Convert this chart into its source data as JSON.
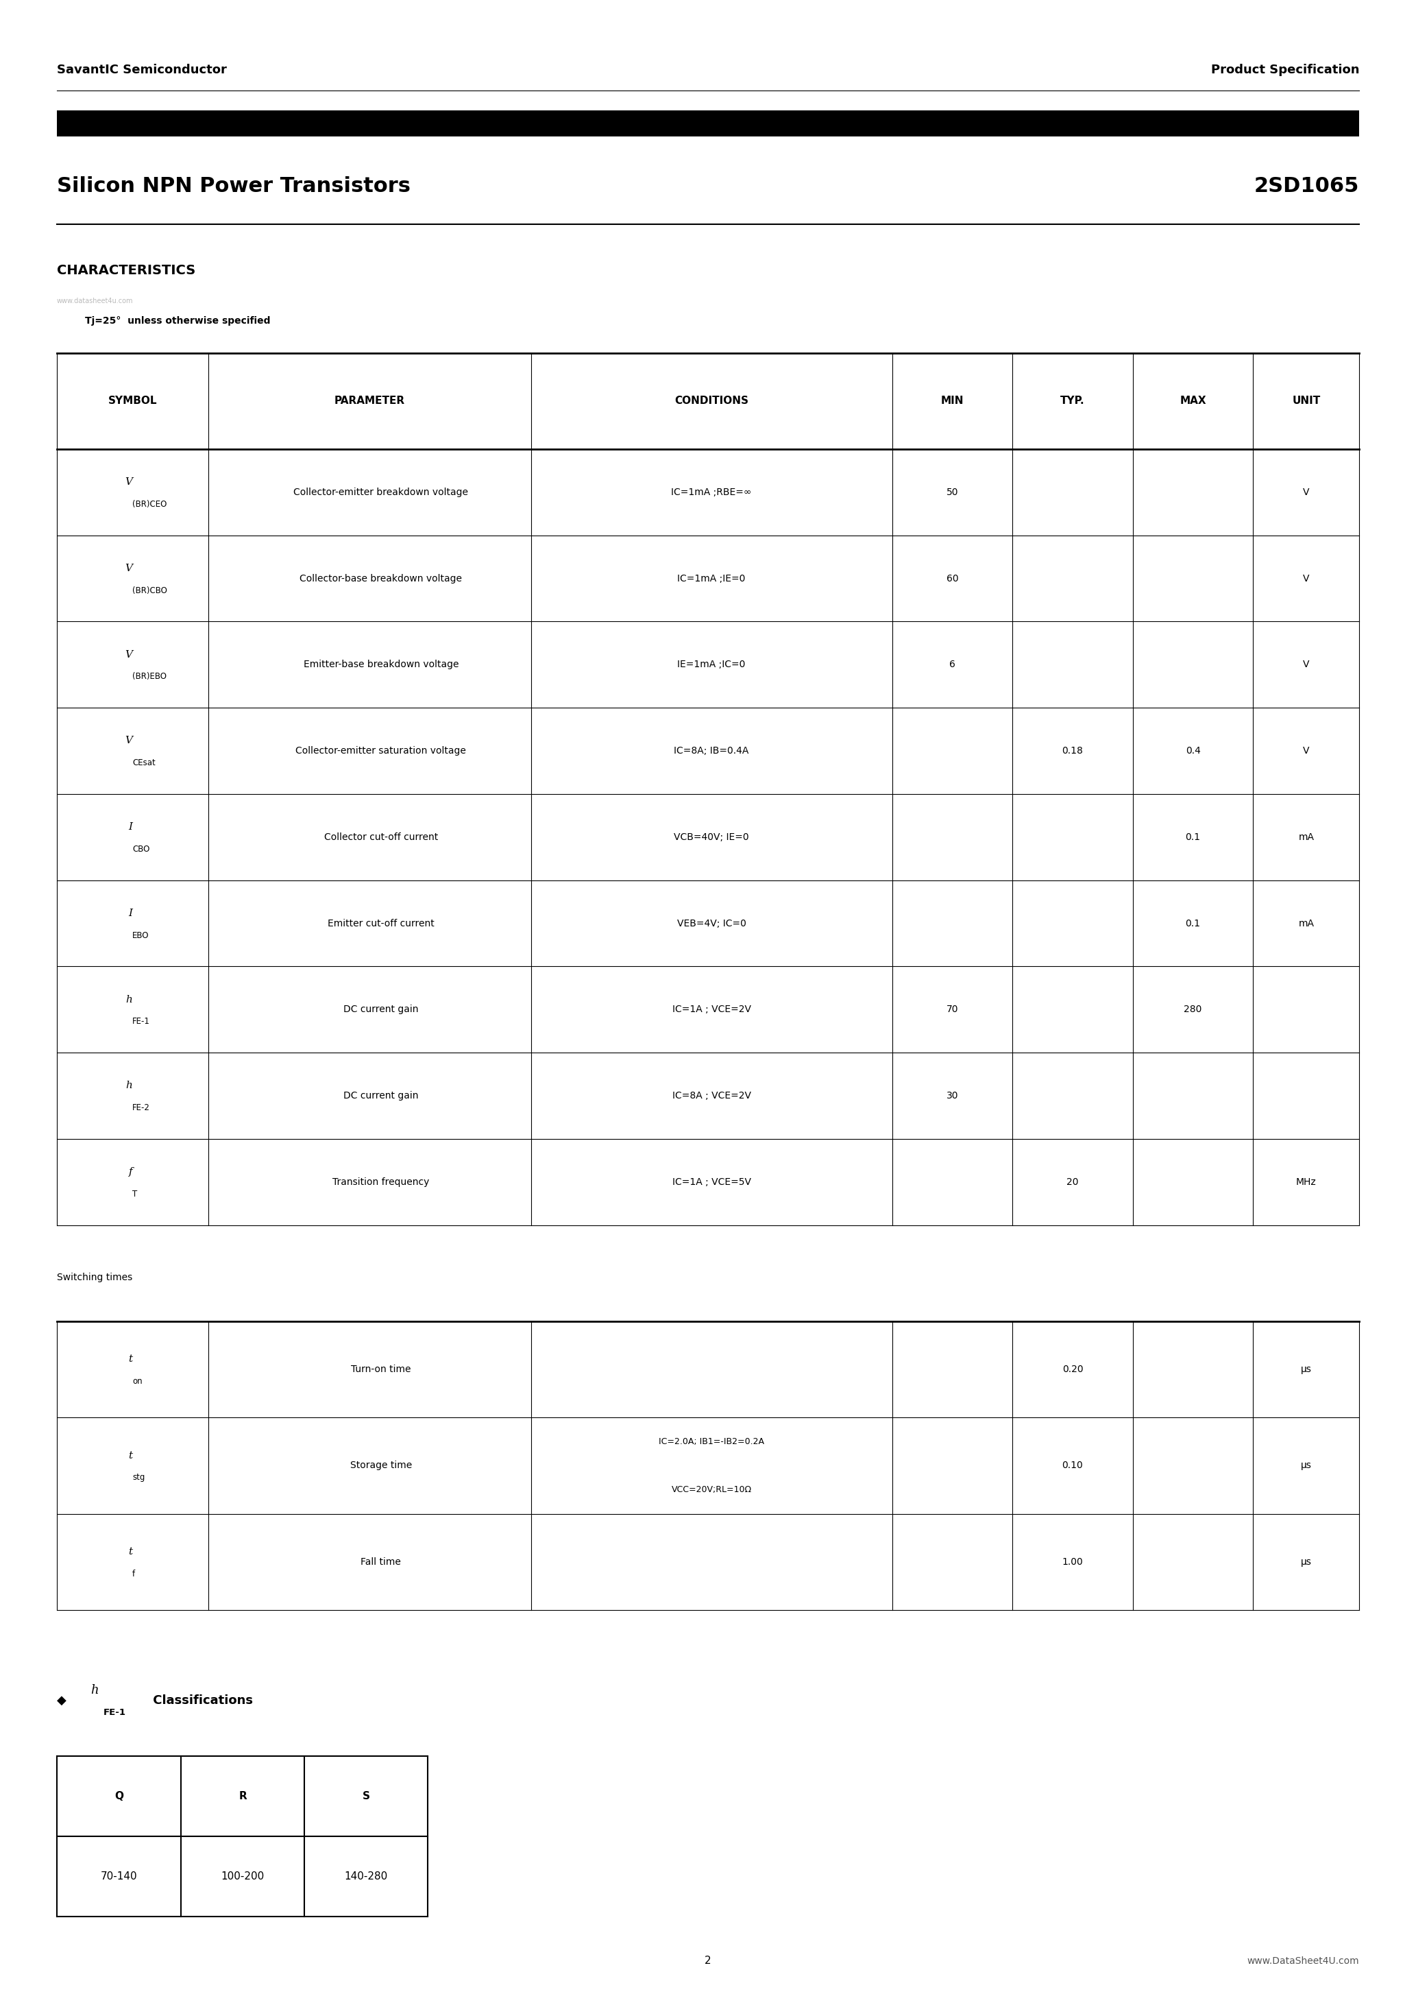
{
  "page_bg": "#ffffff",
  "header_left": "SavantIC Semiconductor",
  "header_right": "Product Specification",
  "title_left": "Silicon NPN Power Transistors",
  "title_right": "2SD1065",
  "section_title": "CHARACTERISTICS",
  "watermark": "www.datasheet4u.com",
  "tj_note": "Tj=25°  unless otherwise specified",
  "table_headers": [
    "SYMBOL",
    "PARAMETER",
    "CONDITIONS",
    "MIN",
    "TYP.",
    "MAX",
    "UNIT"
  ],
  "characteristics_rows": [
    {
      "symbol_main": "V",
      "symbol_sub": "(BR)CEO",
      "parameter": "Collector-emitter breakdown voltage",
      "conditions": "IC=1mA ;RBE=∞",
      "min": "50",
      "typ": "",
      "max": "",
      "unit": "V"
    },
    {
      "symbol_main": "V",
      "symbol_sub": "(BR)CBO",
      "parameter": "Collector-base breakdown voltage",
      "conditions": "IC=1mA ;IE=0",
      "min": "60",
      "typ": "",
      "max": "",
      "unit": "V"
    },
    {
      "symbol_main": "V",
      "symbol_sub": "(BR)EBO",
      "parameter": "Emitter-base breakdown voltage",
      "conditions": "IE=1mA ;IC=0",
      "min": "6",
      "typ": "",
      "max": "",
      "unit": "V"
    },
    {
      "symbol_main": "V",
      "symbol_sub": "CEsat",
      "parameter": "Collector-emitter saturation voltage",
      "conditions": "IC=8A; IB=0.4A",
      "min": "",
      "typ": "0.18",
      "max": "0.4",
      "unit": "V"
    },
    {
      "symbol_main": "I",
      "symbol_sub": "CBO",
      "parameter": "Collector cut-off current",
      "conditions": "VCB=40V; IE=0",
      "min": "",
      "typ": "",
      "max": "0.1",
      "unit": "mA"
    },
    {
      "symbol_main": "I",
      "symbol_sub": "EBO",
      "parameter": "Emitter cut-off current",
      "conditions": "VEB=4V; IC=0",
      "min": "",
      "typ": "",
      "max": "0.1",
      "unit": "mA"
    },
    {
      "symbol_main": "h",
      "symbol_sub": "FE-1",
      "parameter": "DC current gain",
      "conditions": "IC=1A ; VCE=2V",
      "min": "70",
      "typ": "",
      "max": "280",
      "unit": ""
    },
    {
      "symbol_main": "h",
      "symbol_sub": "FE-2",
      "parameter": "DC current gain",
      "conditions": "IC=8A ; VCE=2V",
      "min": "30",
      "typ": "",
      "max": "",
      "unit": ""
    },
    {
      "symbol_main": "f",
      "symbol_sub": "T",
      "parameter": "Transition frequency",
      "conditions": "IC=1A ; VCE=5V",
      "min": "",
      "typ": "20",
      "max": "",
      "unit": "MHz"
    }
  ],
  "switching_label": "Switching times",
  "switching_rows": [
    {
      "symbol_main": "t",
      "symbol_sub": "on",
      "parameter": "Turn-on time",
      "conditions": "",
      "cond_line2": "",
      "min": "",
      "typ": "0.20",
      "max": "",
      "unit": "μs"
    },
    {
      "symbol_main": "t",
      "symbol_sub": "stg",
      "parameter": "Storage time",
      "conditions": "IC=2.0A; IB1=-IB2=0.2A",
      "cond_line2": "VCC=20V;RL=10Ω",
      "min": "",
      "typ": "0.10",
      "max": "",
      "unit": "μs"
    },
    {
      "symbol_main": "t",
      "symbol_sub": "f",
      "parameter": "Fall time",
      "conditions": "",
      "cond_line2": "",
      "min": "",
      "typ": "1.00",
      "max": "",
      "unit": "μs"
    }
  ],
  "hfe_table_headers": [
    "Q",
    "R",
    "S"
  ],
  "hfe_table_row": [
    "70-140",
    "100-200",
    "140-280"
  ],
  "footer_page": "2",
  "footer_right": "www.DataSheet4U.com"
}
